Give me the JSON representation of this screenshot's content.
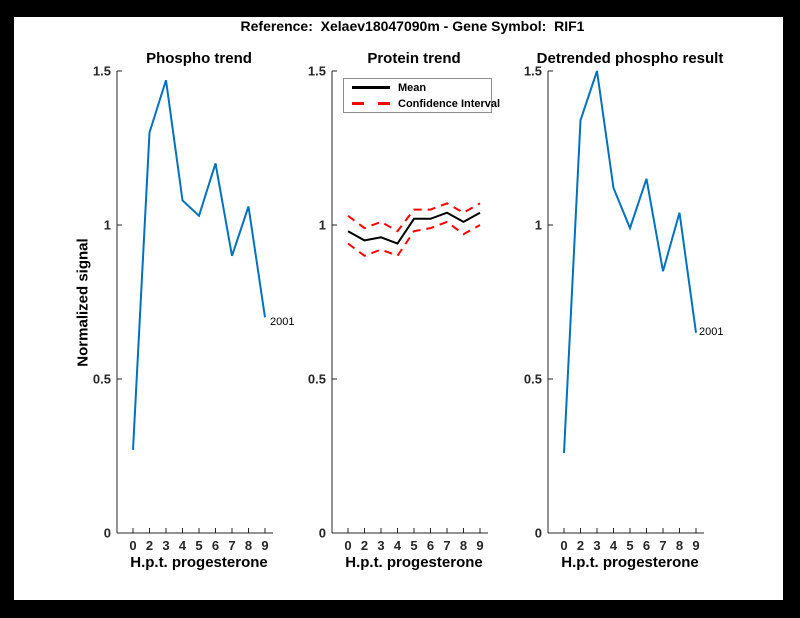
{
  "figure": {
    "title": "Reference:  Xelaev18047090m - Gene Symbol:  RIF1",
    "background_color": "#000000",
    "canvas_color": "#ffffff"
  },
  "colors": {
    "line_blue": "#0072BD",
    "ci_red": "#FF0000",
    "mean_black": "#000000",
    "axis_gray": "#262626"
  },
  "chart_data": [
    {
      "type": "line",
      "title": "Phospho trend",
      "xlabel": "H.p.t. progesterone",
      "ylabel": "Normalized signal",
      "x_tick_labels": [
        "0",
        "2",
        "3",
        "4",
        "5",
        "6",
        "7",
        "8",
        "9"
      ],
      "y_ticks": [
        0,
        0.5,
        1,
        1.5
      ],
      "y_tick_labels": [
        "0",
        "0.5",
        "1",
        "1.5"
      ],
      "ylim": [
        0,
        1.5
      ],
      "grid": false,
      "end_label": "2001",
      "series": [
        {
          "name": "phospho-signal",
          "color": "#0072BD",
          "dash": null,
          "values": [
            0.27,
            1.3,
            1.47,
            1.08,
            1.03,
            1.2,
            0.9,
            1.06,
            0.7
          ]
        }
      ]
    },
    {
      "type": "line",
      "title": "Protein trend",
      "xlabel": "H.p.t. progesterone",
      "ylabel": "",
      "x_tick_labels": [
        "0",
        "2",
        "3",
        "4",
        "5",
        "6",
        "7",
        "8",
        "9"
      ],
      "y_ticks": [
        0,
        0.5,
        1,
        1.5
      ],
      "y_tick_labels": [
        "0",
        "0.5",
        "1",
        "1.5"
      ],
      "ylim": [
        0,
        1.5
      ],
      "grid": false,
      "legend": {
        "position": "top-left",
        "entries": [
          "Mean",
          "Confidence Interval"
        ]
      },
      "series": [
        {
          "name": "mean",
          "color": "#000000",
          "dash": null,
          "values": [
            0.98,
            0.95,
            0.96,
            0.94,
            1.02,
            1.02,
            1.04,
            1.01,
            1.04
          ]
        },
        {
          "name": "confidence-upper",
          "color": "#FF0000",
          "dash": "8 6",
          "values": [
            1.03,
            0.99,
            1.01,
            0.98,
            1.05,
            1.05,
            1.07,
            1.04,
            1.07
          ]
        },
        {
          "name": "confidence-lower",
          "color": "#FF0000",
          "dash": "8 6",
          "values": [
            0.94,
            0.9,
            0.92,
            0.9,
            0.98,
            0.99,
            1.01,
            0.97,
            1.0
          ]
        }
      ]
    },
    {
      "type": "line",
      "title": "Detrended phospho result",
      "xlabel": "H.p.t. progesterone",
      "ylabel": "",
      "x_tick_labels": [
        "0",
        "2",
        "3",
        "4",
        "5",
        "6",
        "7",
        "8",
        "9"
      ],
      "y_ticks": [
        0,
        0.5,
        1,
        1.5
      ],
      "y_tick_labels": [
        "0",
        "0.5",
        "1",
        "1.5"
      ],
      "ylim": [
        0,
        1.5
      ],
      "grid": false,
      "end_label": "2001",
      "series": [
        {
          "name": "detrended-phospho-signal",
          "color": "#0072BD",
          "dash": null,
          "values": [
            0.26,
            1.34,
            1.5,
            1.12,
            0.99,
            1.15,
            0.85,
            1.04,
            0.65
          ]
        }
      ]
    }
  ]
}
